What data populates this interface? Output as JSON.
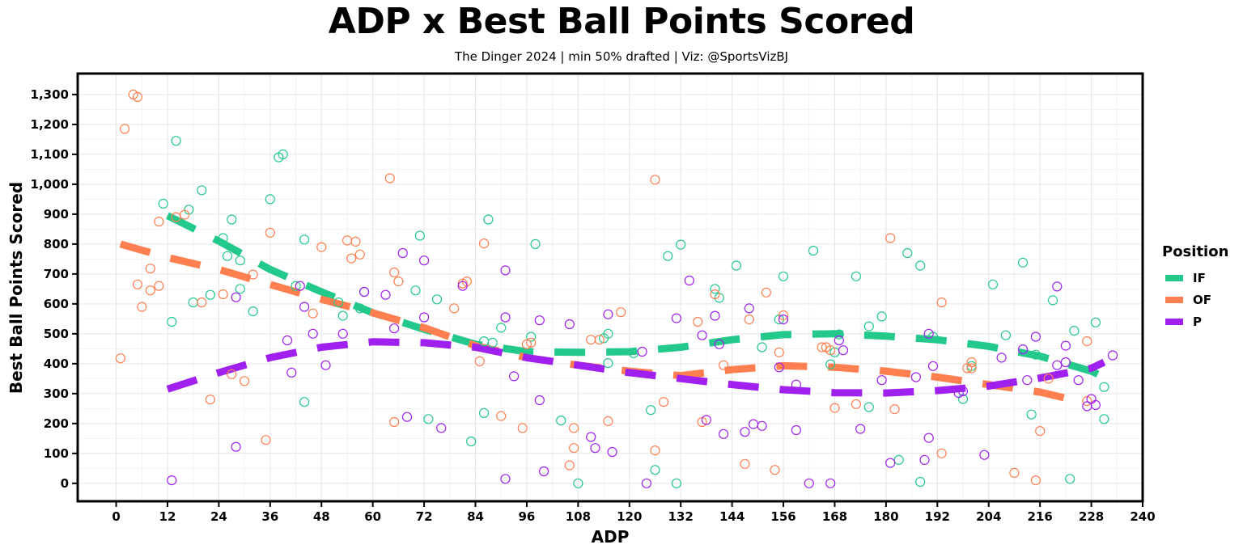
{
  "chart_data": {
    "type": "scatter",
    "title": "ADP x Best Ball Points Scored",
    "subtitle": "The Dinger 2024 | min 50% drafted | Viz: @SportsVizBJ",
    "xlabel": "ADP",
    "ylabel": "Best Ball Points Scored",
    "xlim": [
      -9,
      240
    ],
    "ylim": [
      -60,
      1370
    ],
    "x_ticks": [
      0,
      12,
      24,
      36,
      48,
      60,
      72,
      84,
      96,
      108,
      120,
      132,
      144,
      156,
      168,
      180,
      192,
      204,
      216,
      228,
      240
    ],
    "y_ticks": [
      0,
      100,
      200,
      300,
      400,
      500,
      600,
      700,
      800,
      900,
      1000,
      1100,
      1200,
      1300
    ],
    "y_tick_labels": [
      "0",
      "100",
      "200",
      "300",
      "400",
      "500",
      "600",
      "700",
      "800",
      "900",
      "1,000",
      "1,100",
      "1,200",
      "1,300"
    ],
    "grid": true,
    "legend": {
      "title": "Position",
      "placement": "right"
    },
    "series": [
      {
        "name": "IF",
        "color": "#22c98a",
        "points": [
          [
            11,
            935
          ],
          [
            13,
            540
          ],
          [
            14,
            1145
          ],
          [
            17,
            915
          ],
          [
            18,
            605
          ],
          [
            20,
            980
          ],
          [
            22,
            630
          ],
          [
            25,
            820
          ],
          [
            26,
            760
          ],
          [
            27,
            882
          ],
          [
            29,
            745
          ],
          [
            29,
            650
          ],
          [
            32,
            575
          ],
          [
            36,
            950
          ],
          [
            38,
            1090
          ],
          [
            39,
            1100
          ],
          [
            42,
            660
          ],
          [
            44,
            815
          ],
          [
            44,
            272
          ],
          [
            52,
            605
          ],
          [
            53,
            560
          ],
          [
            57,
            585
          ],
          [
            58,
            640
          ],
          [
            70,
            645
          ],
          [
            71,
            828
          ],
          [
            73,
            215
          ],
          [
            75,
            615
          ],
          [
            83,
            140
          ],
          [
            86,
            235
          ],
          [
            86,
            475
          ],
          [
            87,
            882
          ],
          [
            88,
            470
          ],
          [
            90,
            520
          ],
          [
            97,
            490
          ],
          [
            98,
            800
          ],
          [
            104,
            210
          ],
          [
            108,
            0
          ],
          [
            114,
            485
          ],
          [
            115,
            500
          ],
          [
            115,
            402
          ],
          [
            121,
            435
          ],
          [
            125,
            245
          ],
          [
            126,
            45
          ],
          [
            129,
            760
          ],
          [
            131,
            0
          ],
          [
            132,
            798
          ],
          [
            140,
            650
          ],
          [
            141,
            620
          ],
          [
            145,
            728
          ],
          [
            151,
            455
          ],
          [
            155,
            548
          ],
          [
            156,
            692
          ],
          [
            163,
            778
          ],
          [
            167,
            398
          ],
          [
            168,
            438
          ],
          [
            169,
            498
          ],
          [
            173,
            692
          ],
          [
            176,
            525
          ],
          [
            176,
            255
          ],
          [
            179,
            558
          ],
          [
            183,
            78
          ],
          [
            185,
            770
          ],
          [
            188,
            728
          ],
          [
            188,
            5
          ],
          [
            191,
            490
          ],
          [
            198,
            282
          ],
          [
            200,
            392
          ],
          [
            205,
            665
          ],
          [
            208,
            495
          ],
          [
            212,
            738
          ],
          [
            214,
            230
          ],
          [
            215,
            430
          ],
          [
            219,
            612
          ],
          [
            223,
            15
          ],
          [
            224,
            510
          ],
          [
            229,
            538
          ],
          [
            231,
            215
          ],
          [
            231,
            322
          ]
        ]
      },
      {
        "name": "OF",
        "color": "#ff7f50",
        "points": [
          [
            1,
            418
          ],
          [
            2,
            1185
          ],
          [
            4,
            1300
          ],
          [
            5,
            1292
          ],
          [
            5,
            665
          ],
          [
            6,
            590
          ],
          [
            8,
            718
          ],
          [
            8,
            645
          ],
          [
            10,
            875
          ],
          [
            10,
            660
          ],
          [
            14,
            890
          ],
          [
            16,
            898
          ],
          [
            20,
            605
          ],
          [
            22,
            280
          ],
          [
            25,
            632
          ],
          [
            27,
            365
          ],
          [
            30,
            342
          ],
          [
            32,
            698
          ],
          [
            35,
            145
          ],
          [
            36,
            838
          ],
          [
            46,
            568
          ],
          [
            48,
            790
          ],
          [
            54,
            812
          ],
          [
            55,
            752
          ],
          [
            56,
            808
          ],
          [
            57,
            765
          ],
          [
            64,
            1020
          ],
          [
            65,
            205
          ],
          [
            65,
            705
          ],
          [
            66,
            675
          ],
          [
            79,
            585
          ],
          [
            81,
            668
          ],
          [
            82,
            675
          ],
          [
            85,
            408
          ],
          [
            86,
            802
          ],
          [
            90,
            225
          ],
          [
            95,
            185
          ],
          [
            96,
            465
          ],
          [
            97,
            470
          ],
          [
            106,
            60
          ],
          [
            107,
            185
          ],
          [
            107,
            118
          ],
          [
            111,
            480
          ],
          [
            113,
            480
          ],
          [
            115,
            208
          ],
          [
            118,
            572
          ],
          [
            126,
            1015
          ],
          [
            126,
            110
          ],
          [
            128,
            272
          ],
          [
            136,
            540
          ],
          [
            137,
            205
          ],
          [
            140,
            632
          ],
          [
            142,
            395
          ],
          [
            147,
            65
          ],
          [
            148,
            548
          ],
          [
            152,
            638
          ],
          [
            154,
            45
          ],
          [
            155,
            438
          ],
          [
            156,
            562
          ],
          [
            165,
            455
          ],
          [
            166,
            455
          ],
          [
            167,
            445
          ],
          [
            168,
            252
          ],
          [
            173,
            265
          ],
          [
            181,
            820
          ],
          [
            182,
            248
          ],
          [
            193,
            605
          ],
          [
            193,
            100
          ],
          [
            199,
            385
          ],
          [
            200,
            405
          ],
          [
            200,
            385
          ],
          [
            210,
            35
          ],
          [
            215,
            10
          ],
          [
            216,
            175
          ],
          [
            218,
            350
          ],
          [
            227,
            275
          ],
          [
            227,
            475
          ]
        ]
      },
      {
        "name": "P",
        "color": "#a020f0",
        "points": [
          [
            13,
            10
          ],
          [
            28,
            122
          ],
          [
            28,
            622
          ],
          [
            40,
            478
          ],
          [
            41,
            370
          ],
          [
            43,
            660
          ],
          [
            44,
            590
          ],
          [
            46,
            500
          ],
          [
            49,
            395
          ],
          [
            53,
            500
          ],
          [
            58,
            640
          ],
          [
            63,
            630
          ],
          [
            65,
            518
          ],
          [
            67,
            770
          ],
          [
            68,
            222
          ],
          [
            72,
            745
          ],
          [
            72,
            555
          ],
          [
            76,
            185
          ],
          [
            81,
            660
          ],
          [
            91,
            712
          ],
          [
            91,
            555
          ],
          [
            91,
            15
          ],
          [
            93,
            358
          ],
          [
            99,
            545
          ],
          [
            99,
            278
          ],
          [
            100,
            40
          ],
          [
            106,
            532
          ],
          [
            111,
            155
          ],
          [
            112,
            118
          ],
          [
            115,
            565
          ],
          [
            116,
            105
          ],
          [
            123,
            440
          ],
          [
            124,
            0
          ],
          [
            131,
            552
          ],
          [
            134,
            678
          ],
          [
            137,
            495
          ],
          [
            138,
            212
          ],
          [
            140,
            560
          ],
          [
            141,
            465
          ],
          [
            142,
            165
          ],
          [
            147,
            172
          ],
          [
            148,
            585
          ],
          [
            149,
            198
          ],
          [
            151,
            192
          ],
          [
            155,
            388
          ],
          [
            156,
            548
          ],
          [
            159,
            330
          ],
          [
            159,
            178
          ],
          [
            162,
            0
          ],
          [
            167,
            0
          ],
          [
            169,
            478
          ],
          [
            170,
            445
          ],
          [
            174,
            182
          ],
          [
            179,
            345
          ],
          [
            181,
            68
          ],
          [
            187,
            355
          ],
          [
            189,
            78
          ],
          [
            190,
            500
          ],
          [
            190,
            152
          ],
          [
            191,
            392
          ],
          [
            197,
            302
          ],
          [
            198,
            308
          ],
          [
            203,
            95
          ],
          [
            207,
            420
          ],
          [
            212,
            448
          ],
          [
            213,
            345
          ],
          [
            215,
            490
          ],
          [
            220,
            658
          ],
          [
            220,
            395
          ],
          [
            222,
            405
          ],
          [
            222,
            460
          ],
          [
            225,
            345
          ],
          [
            227,
            258
          ],
          [
            228,
            282
          ],
          [
            229,
            262
          ],
          [
            233,
            428
          ]
        ]
      }
    ],
    "trend_lines": [
      {
        "series": "IF",
        "color": "#22c98a",
        "points": [
          [
            12,
            895
          ],
          [
            24,
            810
          ],
          [
            36,
            715
          ],
          [
            48,
            640
          ],
          [
            60,
            570
          ],
          [
            72,
            515
          ],
          [
            84,
            465
          ],
          [
            96,
            440
          ],
          [
            108,
            438
          ],
          [
            120,
            440
          ],
          [
            132,
            455
          ],
          [
            144,
            480
          ],
          [
            156,
            497
          ],
          [
            168,
            500
          ],
          [
            180,
            492
          ],
          [
            192,
            480
          ],
          [
            204,
            458
          ],
          [
            216,
            425
          ],
          [
            228,
            375
          ],
          [
            231,
            355
          ]
        ]
      },
      {
        "series": "OF",
        "color": "#ff7f50",
        "points": [
          [
            1,
            800
          ],
          [
            12,
            755
          ],
          [
            24,
            715
          ],
          [
            36,
            665
          ],
          [
            48,
            615
          ],
          [
            60,
            570
          ],
          [
            72,
            520
          ],
          [
            84,
            460
          ],
          [
            96,
            420
          ],
          [
            108,
            395
          ],
          [
            120,
            375
          ],
          [
            132,
            360
          ],
          [
            144,
            380
          ],
          [
            156,
            393
          ],
          [
            168,
            388
          ],
          [
            180,
            375
          ],
          [
            192,
            355
          ],
          [
            204,
            330
          ],
          [
            216,
            305
          ],
          [
            222,
            285
          ]
        ]
      },
      {
        "series": "P",
        "color": "#a020f0",
        "points": [
          [
            12,
            315
          ],
          [
            24,
            370
          ],
          [
            36,
            420
          ],
          [
            48,
            455
          ],
          [
            60,
            473
          ],
          [
            72,
            470
          ],
          [
            84,
            455
          ],
          [
            96,
            420
          ],
          [
            108,
            395
          ],
          [
            120,
            370
          ],
          [
            132,
            350
          ],
          [
            144,
            330
          ],
          [
            156,
            313
          ],
          [
            168,
            303
          ],
          [
            180,
            302
          ],
          [
            192,
            310
          ],
          [
            204,
            325
          ],
          [
            216,
            352
          ],
          [
            228,
            385
          ],
          [
            231,
            405
          ]
        ]
      }
    ]
  }
}
